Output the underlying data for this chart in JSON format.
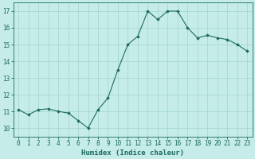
{
  "x": [
    0,
    1,
    2,
    3,
    4,
    5,
    6,
    7,
    8,
    9,
    10,
    11,
    12,
    13,
    14,
    15,
    16,
    17,
    18,
    19,
    20,
    21,
    22,
    23
  ],
  "y": [
    11.1,
    10.8,
    11.1,
    11.15,
    11.0,
    10.9,
    10.45,
    10.0,
    11.1,
    11.8,
    13.5,
    15.0,
    15.5,
    17.0,
    16.5,
    17.0,
    17.0,
    16.0,
    15.4,
    15.55,
    15.4,
    15.3,
    15.0,
    14.6
  ],
  "line_color": "#1e6b5e",
  "marker": "D",
  "marker_size": 1.8,
  "bg_color": "#c5ece8",
  "grid_color": "#a0d4cf",
  "tick_color": "#1e6b5e",
  "xlabel": "Humidex (Indice chaleur)",
  "xlim": [
    -0.5,
    23.5
  ],
  "ylim": [
    9.5,
    17.5
  ],
  "yticks": [
    10,
    11,
    12,
    13,
    14,
    15,
    16,
    17
  ],
  "xticks": [
    0,
    1,
    2,
    3,
    4,
    5,
    6,
    7,
    8,
    9,
    10,
    11,
    12,
    13,
    14,
    15,
    16,
    17,
    18,
    19,
    20,
    21,
    22,
    23
  ],
  "tick_fontsize": 5.5,
  "xlabel_fontsize": 6.5
}
